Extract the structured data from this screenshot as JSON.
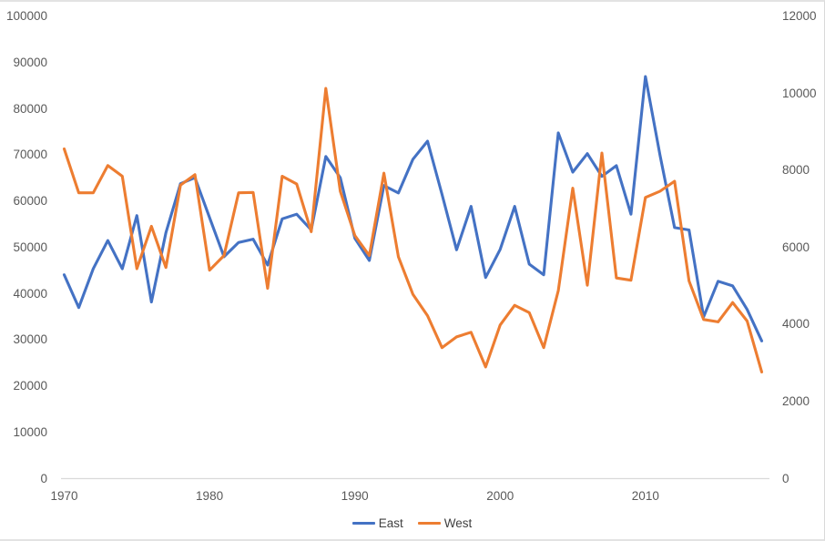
{
  "chart_data": {
    "type": "line",
    "x": [
      1970,
      1971,
      1972,
      1973,
      1974,
      1975,
      1976,
      1977,
      1978,
      1979,
      1980,
      1981,
      1982,
      1983,
      1984,
      1985,
      1986,
      1987,
      1988,
      1989,
      1990,
      1991,
      1992,
      1993,
      1994,
      1995,
      1996,
      1997,
      1998,
      1999,
      2000,
      2001,
      2002,
      2003,
      2004,
      2005,
      2006,
      2007,
      2008,
      2009,
      2010,
      2011,
      2012,
      2013,
      2014,
      2015,
      2016,
      2017,
      2018
    ],
    "series": [
      {
        "name": "East",
        "axis": "left",
        "color": "#4472C4",
        "values": [
          44100,
          37000,
          45400,
          51500,
          45400,
          56900,
          38200,
          53200,
          63800,
          65100,
          56500,
          48000,
          51100,
          51800,
          46200,
          56200,
          57200,
          53800,
          69700,
          65100,
          52000,
          47200,
          63400,
          61800,
          69100,
          73000,
          61500,
          49500,
          58900,
          43500,
          49600,
          58900,
          46400,
          44100,
          74800,
          66300,
          70300,
          65400,
          67700,
          57200,
          87000,
          70000,
          54300,
          53800,
          35000,
          42700,
          41700,
          36600,
          29800
        ]
      },
      {
        "name": "West",
        "axis": "right",
        "color": "#ED7D31",
        "values": [
          8560,
          7420,
          7420,
          8130,
          7850,
          5450,
          6550,
          5480,
          7620,
          7890,
          5410,
          5790,
          7420,
          7430,
          4940,
          7850,
          7650,
          6410,
          10130,
          7460,
          6310,
          5790,
          7930,
          5760,
          4780,
          4230,
          3400,
          3680,
          3800,
          2900,
          3990,
          4500,
          4310,
          3400,
          4880,
          7540,
          5020,
          8450,
          5210,
          5150,
          7300,
          7460,
          7720,
          5130,
          4130,
          4070,
          4570,
          4090,
          2770
        ]
      }
    ],
    "left_axis": {
      "min": 0,
      "max": 100000,
      "ticks": [
        "0",
        "10000",
        "20000",
        "30000",
        "40000",
        "50000",
        "60000",
        "70000",
        "80000",
        "90000",
        "100000"
      ]
    },
    "right_axis": {
      "min": 0,
      "max": 12000,
      "ticks": [
        "0",
        "2000",
        "4000",
        "6000",
        "8000",
        "10000",
        "12000"
      ]
    },
    "x_axis": {
      "min": 1970,
      "max": 2018,
      "tick_years": [
        1970,
        1980,
        1990,
        2000,
        2010
      ],
      "tick_labels": [
        "1970",
        "1980",
        "1990",
        "2000",
        "2010"
      ]
    },
    "legend": {
      "position": "bottom",
      "entries": [
        "East",
        "West"
      ]
    },
    "grid": false
  },
  "colors": {
    "east_line": "#4472C4",
    "west_line": "#ED7D31",
    "axis_text": "#595959",
    "axis_line": "#D9D9D9",
    "border": "#D9D9D9",
    "background": "#FFFFFF"
  }
}
